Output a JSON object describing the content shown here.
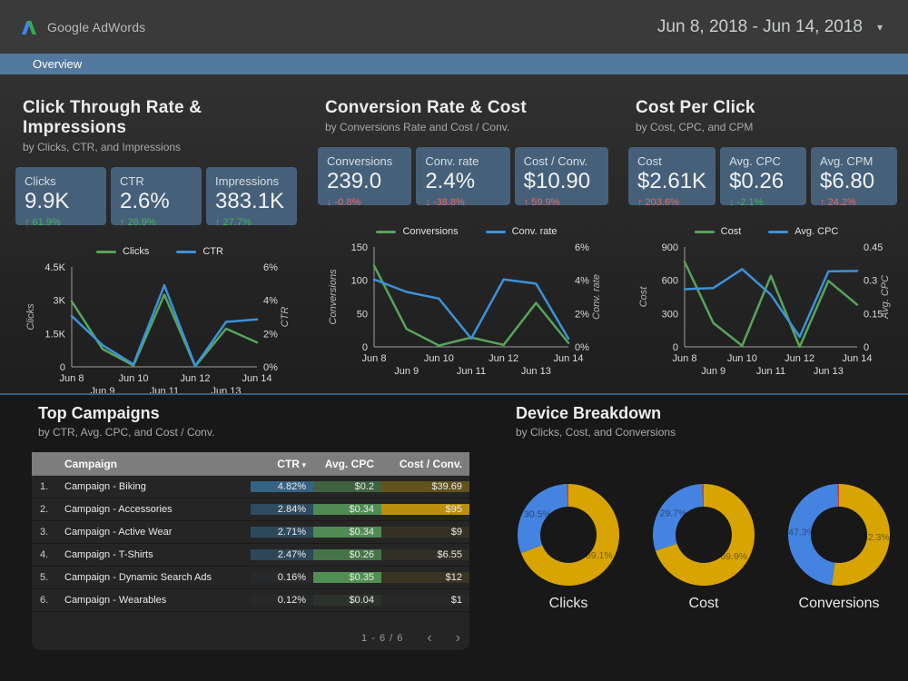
{
  "header": {
    "brand": "Google AdWords",
    "date_range": "Jun 8, 2018 - Jun 14, 2018"
  },
  "nav": {
    "overview_label": "Overview"
  },
  "icons": {
    "up": "↑",
    "down": "↓",
    "caret": "▾",
    "sort": "▾",
    "prev": "‹",
    "next": "›"
  },
  "colors": {
    "tab_bar": "#54799f",
    "scorecard_bg": "#46607a",
    "positive": "#43b35c",
    "negative": "#e26a64",
    "line_green": "#57a55a",
    "line_blue": "#3d92d9",
    "donut_gold": "#d7a402",
    "donut_blue": "#4484e0",
    "donut_red": "#d93a2b"
  },
  "sections": [
    {
      "title": "Click Through Rate & Impressions",
      "subtitle": "by Clicks, CTR, and Impressions",
      "scorecards": [
        {
          "label": "Clicks",
          "value": "9.9K",
          "delta": "61.9%",
          "direction": "up",
          "sentiment": "positive"
        },
        {
          "label": "CTR",
          "value": "2.6%",
          "delta": "26.9%",
          "direction": "up",
          "sentiment": "positive"
        },
        {
          "label": "Impressions",
          "value": "383.1K",
          "delta": "27.7%",
          "direction": "up",
          "sentiment": "positive"
        }
      ]
    },
    {
      "title": "Conversion Rate & Cost",
      "subtitle": "by Conversions Rate and Cost / Conv.",
      "scorecards": [
        {
          "label": "Conversions",
          "value": "239.0",
          "delta": "-0.8%",
          "direction": "down",
          "sentiment": "negative"
        },
        {
          "label": "Conv. rate",
          "value": "2.4%",
          "delta": "-38.8%",
          "direction": "down",
          "sentiment": "negative"
        },
        {
          "label": "Cost / Conv.",
          "value": "$10.90",
          "delta": "59.9%",
          "direction": "up",
          "sentiment": "negative"
        }
      ]
    },
    {
      "title": "Cost Per Click",
      "subtitle": "by Cost, CPC, and CPM",
      "scorecards": [
        {
          "label": "Cost",
          "value": "$2.61K",
          "delta": "203.6%",
          "direction": "up",
          "sentiment": "negative"
        },
        {
          "label": "Avg. CPC",
          "value": "$0.26",
          "delta": "-2.1%",
          "direction": "down",
          "sentiment": "positive"
        },
        {
          "label": "Avg. CPM",
          "value": "$6.80",
          "delta": "24.2%",
          "direction": "up",
          "sentiment": "negative"
        }
      ]
    }
  ],
  "chart_data": [
    {
      "type": "line",
      "title": "Click Through Rate & Impressions",
      "x": [
        "Jun 8",
        "Jun 9",
        "Jun 10",
        "Jun 11",
        "Jun 12",
        "Jun 13",
        "Jun 14"
      ],
      "left_axis": {
        "label": "Clicks",
        "ticks": [
          "0",
          "1.5K",
          "3K",
          "4.5K"
        ],
        "min": 0,
        "max": 4500
      },
      "right_axis": {
        "label": "CTR",
        "ticks": [
          "0%",
          "2%",
          "4%",
          "6%"
        ],
        "min": 0,
        "max": 6
      },
      "series": [
        {
          "name": "Clicks",
          "axis": "left",
          "color": "#57a55a",
          "values": [
            2950,
            800,
            60,
            3250,
            20,
            1720,
            1100
          ]
        },
        {
          "name": "CTR",
          "axis": "right",
          "color": "#3d92d9",
          "values": [
            3.05,
            1.3,
            0.15,
            4.9,
            0.05,
            2.7,
            2.85
          ]
        }
      ]
    },
    {
      "type": "line",
      "title": "Conversion Rate & Cost",
      "x": [
        "Jun 8",
        "Jun 9",
        "Jun 10",
        "Jun 11",
        "Jun 12",
        "Jun 13",
        "Jun 14"
      ],
      "left_axis": {
        "label": "Conversions",
        "ticks": [
          "0",
          "50",
          "100",
          "150"
        ],
        "min": 0,
        "max": 150
      },
      "right_axis": {
        "label": "Conv. rate",
        "ticks": [
          "0%",
          "2%",
          "4%",
          "6%"
        ],
        "min": 0,
        "max": 6
      },
      "series": [
        {
          "name": "Conversions",
          "axis": "left",
          "color": "#57a55a",
          "values": [
            122,
            27,
            2,
            14,
            3,
            66,
            6
          ]
        },
        {
          "name": "Conv. rate",
          "axis": "right",
          "color": "#3d92d9",
          "values": [
            4.05,
            3.3,
            2.9,
            0.5,
            4.05,
            3.8,
            0.5
          ]
        }
      ]
    },
    {
      "type": "line",
      "title": "Cost Per Click",
      "x": [
        "Jun 8",
        "Jun 9",
        "Jun 10",
        "Jun 11",
        "Jun 12",
        "Jun 13",
        "Jun 14"
      ],
      "left_axis": {
        "label": "Cost",
        "ticks": [
          "0",
          "300",
          "600",
          "900"
        ],
        "min": 0,
        "max": 900
      },
      "right_axis": {
        "label": "Avg. CPC",
        "ticks": [
          "0",
          "0.15",
          "0.3",
          "0.45"
        ],
        "min": 0,
        "max": 0.45
      },
      "series": [
        {
          "name": "Cost",
          "axis": "left",
          "color": "#57a55a",
          "values": [
            765,
            215,
            10,
            640,
            0,
            595,
            380
          ]
        },
        {
          "name": "Avg. CPC",
          "axis": "right",
          "color": "#3d92d9",
          "values": [
            0.26,
            0.265,
            0.35,
            0.235,
            0.045,
            0.34,
            0.342
          ]
        }
      ]
    },
    {
      "type": "donut",
      "title": "Device Breakdown",
      "palette": {
        "gold": "#d7a402",
        "blue": "#4484e0",
        "red": "#d93a2b"
      },
      "donuts": [
        {
          "label": "Clicks",
          "slices": [
            {
              "color": "gold",
              "pct": 69.1,
              "text": "69.1%"
            },
            {
              "color": "blue",
              "pct": 30.5,
              "text": "30.5%"
            },
            {
              "color": "red",
              "pct": 0.4,
              "text": ""
            }
          ]
        },
        {
          "label": "Cost",
          "slices": [
            {
              "color": "gold",
              "pct": 69.9,
              "text": "69.9%"
            },
            {
              "color": "blue",
              "pct": 29.7,
              "text": "29.7%"
            },
            {
              "color": "red",
              "pct": 0.4,
              "text": ""
            }
          ]
        },
        {
          "label": "Conversions",
          "slices": [
            {
              "color": "gold",
              "pct": 52.3,
              "text": "52.3%"
            },
            {
              "color": "blue",
              "pct": 47.3,
              "text": "47.3%"
            },
            {
              "color": "red",
              "pct": 0.4,
              "text": ""
            }
          ]
        }
      ]
    }
  ],
  "table": {
    "title": "Top Campaigns",
    "subtitle": "by CTR, Avg. CPC, and Cost / Conv.",
    "columns": [
      {
        "label": "Campaign"
      },
      {
        "label": "CTR",
        "sorted": true,
        "heat_base": "#386e96",
        "heat_max": 4.82
      },
      {
        "label": "Avg. CPC",
        "heat_base": "#58a05c",
        "heat_max": 0.35
      },
      {
        "label": "Cost / Conv.",
        "heat_base": "#d4a00a",
        "heat_max": 95
      }
    ],
    "rows": [
      {
        "num": "1.",
        "campaign": "Campaign - Biking",
        "ctr": "4.82%",
        "cpc": "$0.2",
        "cost_conv": "$39.69"
      },
      {
        "num": "2.",
        "campaign": "Campaign - Accessories",
        "ctr": "2.84%",
        "cpc": "$0.34",
        "cost_conv": "$95"
      },
      {
        "num": "3.",
        "campaign": "Campaign - Active Wear",
        "ctr": "2.71%",
        "cpc": "$0.34",
        "cost_conv": "$9"
      },
      {
        "num": "4.",
        "campaign": "Campaign - T-Shirts",
        "ctr": "2.47%",
        "cpc": "$0.26",
        "cost_conv": "$6.55"
      },
      {
        "num": "5.",
        "campaign": "Campaign - Dynamic Search Ads",
        "ctr": "0.16%",
        "cpc": "$0.35",
        "cost_conv": "$12"
      },
      {
        "num": "6.",
        "campaign": "Campaign - Wearables",
        "ctr": "0.12%",
        "cpc": "$0.04",
        "cost_conv": "$1"
      }
    ],
    "pagination": {
      "label": "1 - 6 / 6"
    }
  },
  "devices": {
    "title": "Device Breakdown",
    "subtitle": "by Clicks, Cost, and Conversions"
  }
}
